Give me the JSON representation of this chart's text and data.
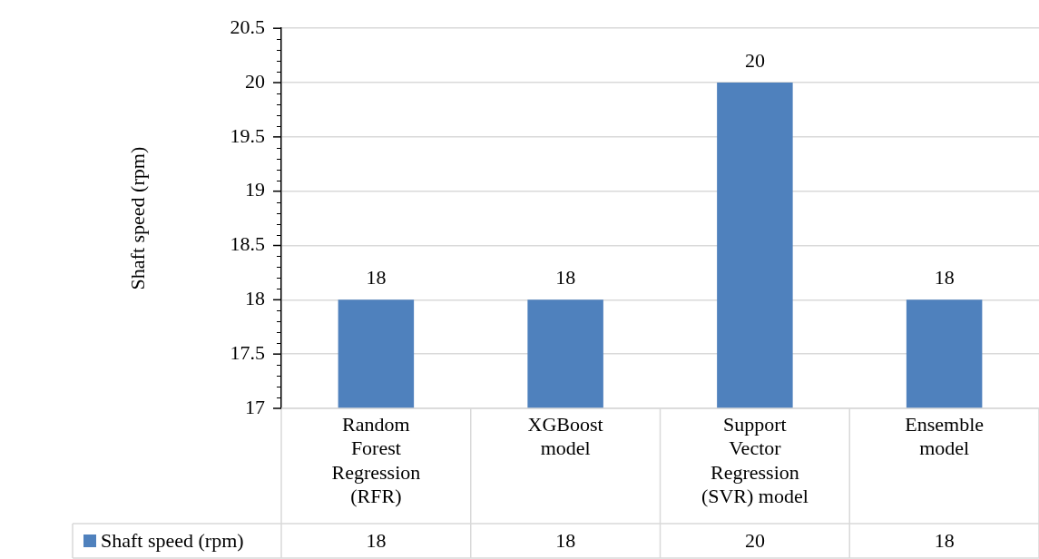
{
  "chart_data": {
    "type": "bar",
    "ylabel": "Shaft speed (rpm)",
    "categories": [
      "Random Forest Regression (RFR)",
      "XGBoost model",
      "Support Vector Regression (SVR) model",
      "Ensemble model"
    ],
    "series": [
      {
        "name": "Shaft speed (rpm)",
        "color": "#4f81bd",
        "values": [
          18,
          18,
          20,
          18
        ]
      }
    ],
    "annotations": [
      {
        "text": "18",
        "x": "Random Forest Regression (RFR)",
        "y": 18
      },
      {
        "text": "18",
        "x": "XGBoost model",
        "y": 18
      },
      {
        "text": "20",
        "x": "Support Vector Regression (SVR) model",
        "y": 20
      },
      {
        "text": "18",
        "x": "Ensemble model",
        "y": 18
      }
    ],
    "ylim": [
      17,
      20.5
    ],
    "yticks": [
      17,
      17.5,
      18,
      18.5,
      19,
      19.5,
      20,
      20.5
    ],
    "grid": "y",
    "data_labels": true,
    "legend": "bottom"
  }
}
